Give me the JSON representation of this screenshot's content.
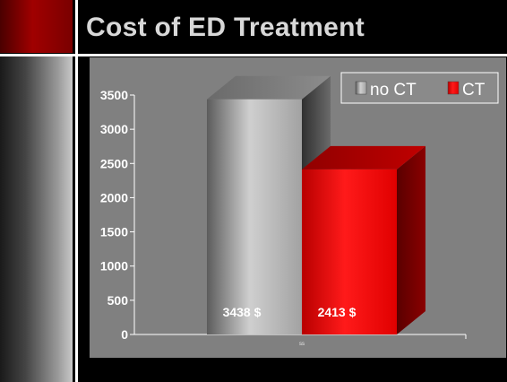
{
  "slide": {
    "title": "Cost of ED Treatment",
    "accent_color": "#a00000"
  },
  "chart_data": {
    "type": "bar",
    "categories": [
      "ss"
    ],
    "series": [
      {
        "name": "no CT",
        "values": [
          3438
        ],
        "label": "3438 $",
        "color": "#b4b4b4"
      },
      {
        "name": "CT",
        "values": [
          2413
        ],
        "label": "2413 $",
        "color": "#ee0000"
      }
    ],
    "ylim": [
      0,
      3500
    ],
    "yticks": [
      0,
      500,
      1000,
      1500,
      2000,
      2500,
      3000,
      3500
    ],
    "grid": false,
    "legend_position": "top-right",
    "style": "3d-column"
  }
}
